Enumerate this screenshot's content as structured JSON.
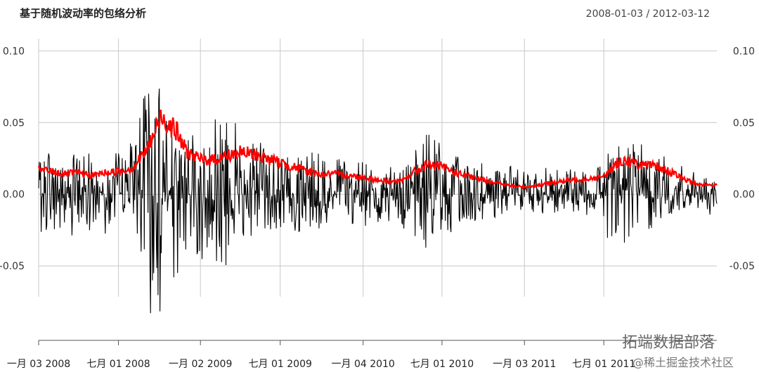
{
  "chart_data": {
    "type": "line",
    "title": "基于随机波动率的包络分析",
    "date_range_label": "2008-01-03 / 2012-03-12",
    "x_start": "2008-01-03",
    "x_end": "2012-03-12",
    "ylim": [
      -0.1,
      0.11
    ],
    "y_ticks": [
      -0.05,
      0.0,
      0.05,
      0.1
    ],
    "y_tick_labels": [
      "-0.05",
      "0.00",
      "0.05",
      "0.10"
    ],
    "x_ticks": [
      {
        "date": "2008-01-03",
        "label": "一月 03 2008"
      },
      {
        "date": "2008-07-01",
        "label": "七月 01 2008"
      },
      {
        "date": "2009-01-02",
        "label": "一月 02 2009"
      },
      {
        "date": "2009-07-01",
        "label": "七月 01 2009"
      },
      {
        "date": "2010-01-04",
        "label": "一月 04 2010"
      },
      {
        "date": "2010-07-01",
        "label": "七月 01 2010"
      },
      {
        "date": "2011-01-03",
        "label": "一月 03 2011"
      },
      {
        "date": "2011-07-01",
        "label": "七月 01 2011"
      }
    ],
    "grid": true,
    "series": [
      {
        "color": "#000000",
        "x": [
          "2008-01-03",
          "2008-02-01",
          "2008-03-01",
          "2008-04-01",
          "2008-05-01",
          "2008-06-01",
          "2008-07-01",
          "2008-08-01",
          "2008-09-01",
          "2008-09-20",
          "2008-10-05",
          "2008-10-20",
          "2008-11-05",
          "2008-12-01",
          "2009-01-02",
          "2009-02-01",
          "2009-03-01",
          "2009-04-01",
          "2009-05-01",
          "2009-06-01",
          "2009-07-01",
          "2009-08-01",
          "2009-09-01",
          "2009-10-01",
          "2009-11-01",
          "2009-12-01",
          "2010-01-04",
          "2010-02-01",
          "2010-03-01",
          "2010-04-01",
          "2010-05-01",
          "2010-06-01",
          "2010-07-01",
          "2010-08-01",
          "2010-09-01",
          "2010-10-01",
          "2010-11-01",
          "2010-12-01",
          "2011-01-03",
          "2011-02-01",
          "2011-03-01",
          "2011-04-01",
          "2011-05-01",
          "2011-06-01",
          "2011-07-01",
          "2011-08-01",
          "2011-08-20",
          "2011-09-01",
          "2011-10-01",
          "2011-11-01",
          "2011-12-01",
          "2012-01-01",
          "2012-02-01",
          "2012-03-12"
        ],
        "y_high": [
          0.022,
          0.042,
          0.03,
          0.028,
          0.032,
          0.025,
          0.03,
          0.037,
          0.075,
          0.11,
          0.07,
          0.062,
          0.058,
          0.04,
          0.045,
          0.062,
          0.068,
          0.045,
          0.04,
          0.04,
          0.028,
          0.03,
          0.03,
          0.028,
          0.024,
          0.026,
          0.024,
          0.026,
          0.022,
          0.024,
          0.03,
          0.044,
          0.036,
          0.03,
          0.026,
          0.022,
          0.018,
          0.02,
          0.016,
          0.018,
          0.022,
          0.02,
          0.02,
          0.018,
          0.022,
          0.046,
          0.035,
          0.04,
          0.038,
          0.032,
          0.028,
          0.02,
          0.014,
          0.008
        ],
        "y_low": [
          -0.025,
          -0.032,
          -0.028,
          -0.03,
          -0.025,
          -0.028,
          -0.03,
          -0.035,
          -0.07,
          -0.095,
          -0.085,
          -0.095,
          -0.06,
          -0.045,
          -0.045,
          -0.05,
          -0.055,
          -0.04,
          -0.038,
          -0.03,
          -0.025,
          -0.028,
          -0.026,
          -0.025,
          -0.022,
          -0.02,
          -0.022,
          -0.025,
          -0.02,
          -0.022,
          -0.035,
          -0.04,
          -0.035,
          -0.025,
          -0.022,
          -0.018,
          -0.016,
          -0.014,
          -0.012,
          -0.015,
          -0.015,
          -0.014,
          -0.014,
          -0.015,
          -0.02,
          -0.07,
          -0.05,
          -0.035,
          -0.03,
          -0.028,
          -0.02,
          -0.014,
          -0.012,
          -0.016
        ]
      },
      {
        "color": "#ff0000",
        "x": [
          "2008-01-03",
          "2008-02-01",
          "2008-03-01",
          "2008-04-01",
          "2008-05-01",
          "2008-06-01",
          "2008-07-01",
          "2008-08-01",
          "2008-09-01",
          "2008-09-20",
          "2008-10-05",
          "2008-10-20",
          "2008-11-05",
          "2008-12-01",
          "2009-01-02",
          "2009-02-01",
          "2009-03-01",
          "2009-04-01",
          "2009-05-01",
          "2009-06-01",
          "2009-07-01",
          "2009-08-01",
          "2009-09-01",
          "2009-10-01",
          "2009-11-01",
          "2009-12-01",
          "2010-01-04",
          "2010-02-01",
          "2010-03-01",
          "2010-04-01",
          "2010-05-01",
          "2010-06-01",
          "2010-07-01",
          "2010-08-01",
          "2010-09-01",
          "2010-10-01",
          "2010-11-01",
          "2010-12-01",
          "2011-01-03",
          "2011-02-01",
          "2011-03-01",
          "2011-04-01",
          "2011-05-01",
          "2011-06-01",
          "2011-07-01",
          "2011-08-01",
          "2011-08-20",
          "2011-09-01",
          "2011-10-01",
          "2011-11-01",
          "2011-12-01",
          "2012-01-01",
          "2012-02-01",
          "2012-03-12"
        ],
        "y": [
          0.017,
          0.016,
          0.014,
          0.015,
          0.013,
          0.015,
          0.016,
          0.018,
          0.03,
          0.042,
          0.055,
          0.05,
          0.046,
          0.03,
          0.024,
          0.024,
          0.027,
          0.029,
          0.028,
          0.025,
          0.022,
          0.019,
          0.016,
          0.014,
          0.014,
          0.013,
          0.012,
          0.01,
          0.009,
          0.009,
          0.016,
          0.021,
          0.019,
          0.015,
          0.012,
          0.01,
          0.008,
          0.006,
          0.005,
          0.006,
          0.008,
          0.009,
          0.01,
          0.011,
          0.012,
          0.022,
          0.024,
          0.022,
          0.02,
          0.019,
          0.015,
          0.01,
          0.007,
          0.006
        ]
      }
    ]
  },
  "watermark": {
    "brand": "拓端数据部落",
    "community": "@稀土掘金技术社区"
  }
}
